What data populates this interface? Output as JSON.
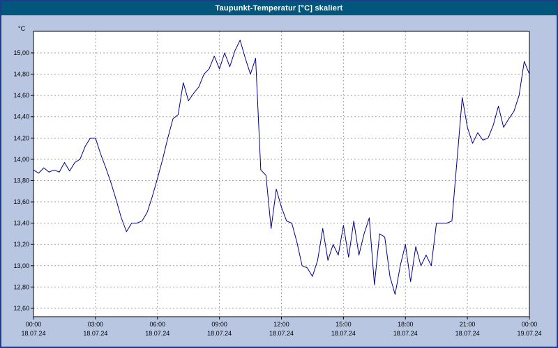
{
  "window": {
    "title": "Taupunkt-Temperatur [°C] skaliert"
  },
  "colors": {
    "background": "#b8c6e2",
    "titlebar": "#02567c",
    "border": "#203a8c",
    "plot_bg": "#ffffff",
    "grid": "#a0a0a0",
    "axis": "#000000",
    "line": "#00008b"
  },
  "chart_data": {
    "type": "line",
    "title": "Taupunkt-Temperatur [°C] skaliert",
    "y_unit": "°C",
    "ylabel": "",
    "xlabel": "",
    "ylim": [
      12.6,
      15.0
    ],
    "xlim_hours": [
      0,
      24
    ],
    "grid": "dashed",
    "legend": "none",
    "y_ticks": [
      {
        "value": 15.0,
        "label": "15,00"
      },
      {
        "value": 14.8,
        "label": "14,80"
      },
      {
        "value": 14.6,
        "label": "14,60"
      },
      {
        "value": 14.4,
        "label": "14,40"
      },
      {
        "value": 14.2,
        "label": "14,20"
      },
      {
        "value": 14.0,
        "label": "14,00"
      },
      {
        "value": 13.8,
        "label": "13,80"
      },
      {
        "value": 13.6,
        "label": "13,60"
      },
      {
        "value": 13.4,
        "label": "13,40"
      },
      {
        "value": 13.2,
        "label": "13,20"
      },
      {
        "value": 13.0,
        "label": "13,00"
      },
      {
        "value": 12.8,
        "label": "12,80"
      },
      {
        "value": 12.6,
        "label": "12,60"
      }
    ],
    "x_ticks": [
      {
        "hour": 0,
        "time": "00:00",
        "date": "18.07.24"
      },
      {
        "hour": 3,
        "time": "03:00",
        "date": "18.07.24"
      },
      {
        "hour": 6,
        "time": "06:00",
        "date": "18.07.24"
      },
      {
        "hour": 9,
        "time": "09:00",
        "date": "18.07.24"
      },
      {
        "hour": 12,
        "time": "12:00",
        "date": "18.07.24"
      },
      {
        "hour": 15,
        "time": "15:00",
        "date": "18.07.24"
      },
      {
        "hour": 18,
        "time": "18:00",
        "date": "18.07.24"
      },
      {
        "hour": 21,
        "time": "21:00",
        "date": "18.07.24"
      },
      {
        "hour": 24,
        "time": "00:00",
        "date": "19.07.24"
      }
    ],
    "series": [
      {
        "name": "Taupunkt-Temperatur",
        "color": "#00008b",
        "x_start": 0,
        "x_step": 0.25,
        "values": [
          13.9,
          13.87,
          13.92,
          13.88,
          13.9,
          13.88,
          13.97,
          13.89,
          13.97,
          14.0,
          14.12,
          14.2,
          14.2,
          14.05,
          13.92,
          13.78,
          13.62,
          13.45,
          13.32,
          13.4,
          13.4,
          13.42,
          13.5,
          13.65,
          13.82,
          14.0,
          14.2,
          14.38,
          14.42,
          14.72,
          14.55,
          14.62,
          14.68,
          14.8,
          14.85,
          14.97,
          14.85,
          15.0,
          14.87,
          15.02,
          15.12,
          14.95,
          14.8,
          14.95,
          13.9,
          13.85,
          13.35,
          13.72,
          13.55,
          13.42,
          13.4,
          13.22,
          13.0,
          12.98,
          12.9,
          13.05,
          13.35,
          13.05,
          13.2,
          13.1,
          13.38,
          13.08,
          13.42,
          13.1,
          13.3,
          13.45,
          12.82,
          13.3,
          13.27,
          12.9,
          12.73,
          13.0,
          13.2,
          12.85,
          13.18,
          13.0,
          13.1,
          13.0,
          13.4,
          13.4,
          13.4,
          13.42,
          14.0,
          14.58,
          14.3,
          14.15,
          14.25,
          14.18,
          14.2,
          14.32,
          14.5,
          14.3,
          14.38,
          14.45,
          14.6,
          14.92,
          14.8
        ]
      }
    ]
  }
}
